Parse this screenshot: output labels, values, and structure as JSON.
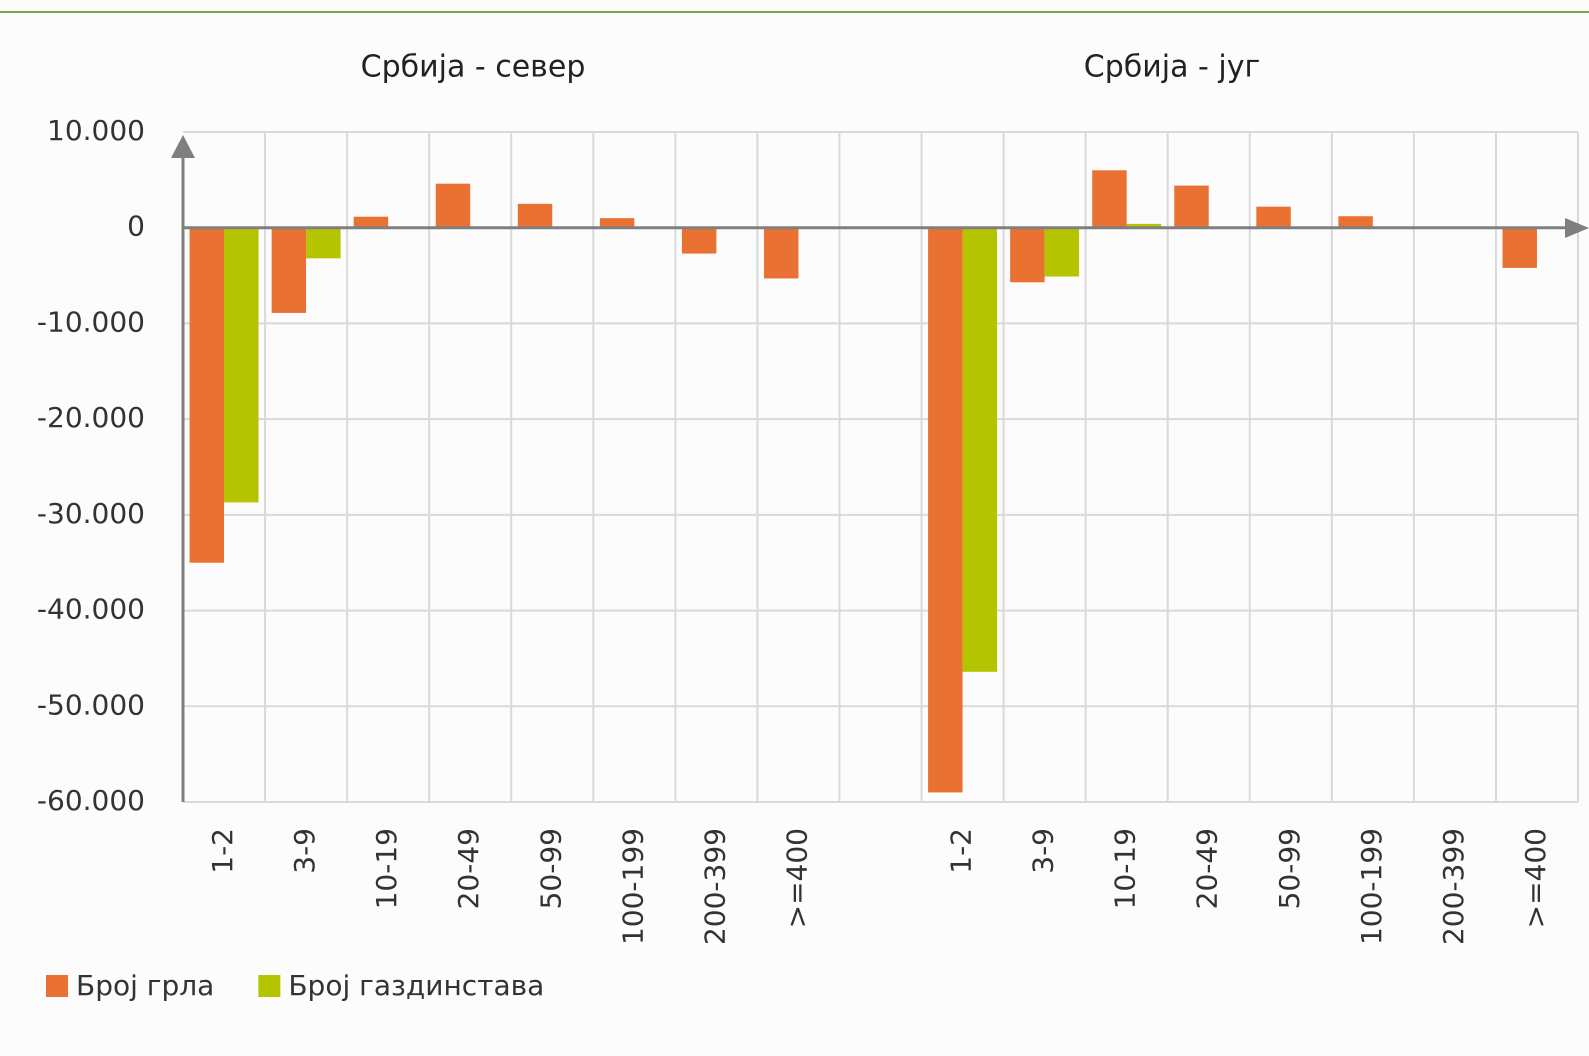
{
  "chart_data": {
    "type": "bar",
    "annotations": [
      "Србија - север",
      "Србија - југ"
    ],
    "categories": [
      "1-2",
      "3-9",
      "10-19",
      "20-49",
      "50-99",
      "100-199",
      "200-399",
      ">=400",
      null,
      "1-2",
      "3-9",
      "10-19",
      "20-49",
      "50-99",
      "100-199",
      "200-399",
      ">=400"
    ],
    "series": [
      {
        "name": "Број грла",
        "color": "#e97132",
        "values": [
          -35000,
          -8900,
          1150,
          4600,
          2500,
          1000,
          -2700,
          -5300,
          null,
          -59000,
          -5700,
          6000,
          4400,
          2200,
          1200,
          0,
          -4200
        ]
      },
      {
        "name": "Број газдинстава",
        "color": "#b5c400",
        "values": [
          -28700,
          -3200,
          0,
          0,
          0,
          0,
          0,
          0,
          null,
          -46400,
          -5100,
          400,
          0,
          0,
          0,
          0,
          0
        ]
      }
    ],
    "ylim": [
      -60000,
      10000
    ],
    "yticks": [
      {
        "value": -60000,
        "label": "-60.000"
      },
      {
        "value": -50000,
        "label": "-50.000"
      },
      {
        "value": -40000,
        "label": "-40.000"
      },
      {
        "value": -30000,
        "label": "-30.000"
      },
      {
        "value": -20000,
        "label": "-20.000"
      },
      {
        "value": -10000,
        "label": "-10.000"
      },
      0,
      {
        "value": 10000,
        "label": "10.000"
      }
    ],
    "grid": true
  }
}
